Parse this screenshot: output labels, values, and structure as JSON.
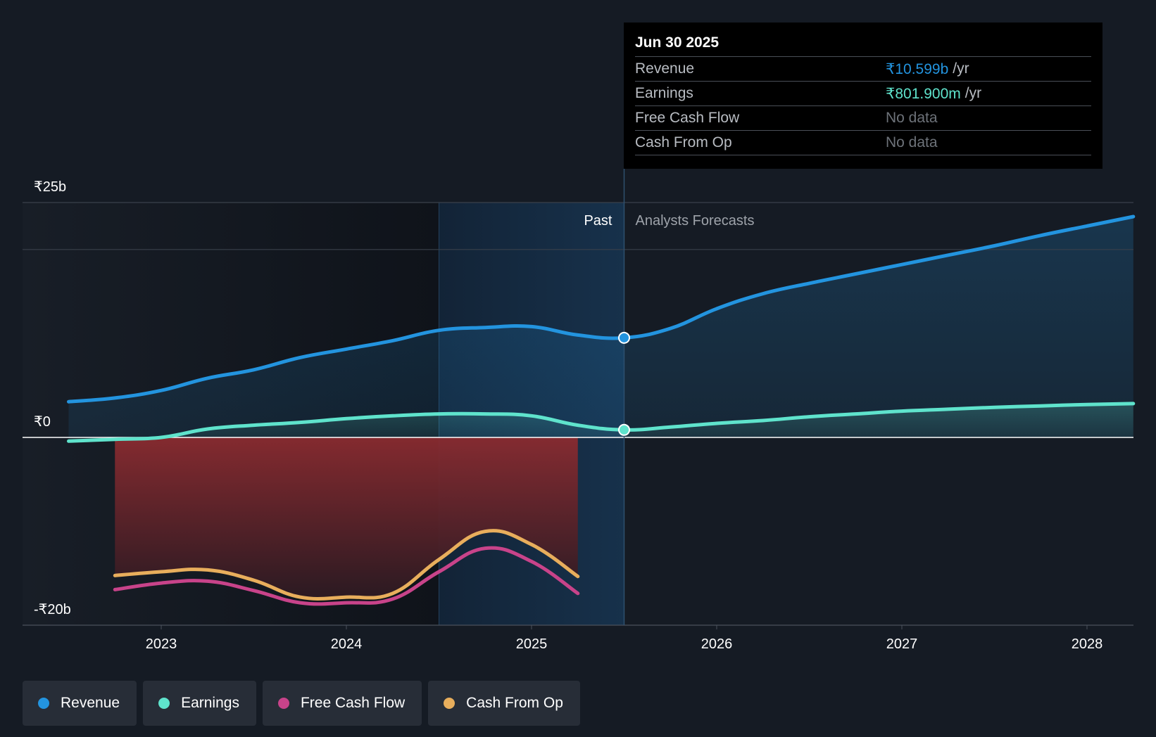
{
  "tooltip": {
    "date": "Jun 30 2025",
    "rows": [
      {
        "name": "Revenue",
        "value": "₹10.599b",
        "unit": "/yr",
        "color": "#2394df"
      },
      {
        "name": "Earnings",
        "value": "₹801.900m",
        "unit": "/yr",
        "color": "#5fe3cc"
      },
      {
        "name": "Free Cash Flow",
        "value": "No data"
      },
      {
        "name": "Cash From Op",
        "value": "No data"
      }
    ]
  },
  "regions": {
    "past": "Past",
    "forecast": "Analysts Forecasts"
  },
  "legend": [
    {
      "label": "Revenue",
      "color": "#2394df"
    },
    {
      "label": "Earnings",
      "color": "#5fe3cc"
    },
    {
      "label": "Free Cash Flow",
      "color": "#c8438a"
    },
    {
      "label": "Cash From Op",
      "color": "#e8ae5c"
    }
  ],
  "chart_data": {
    "type": "line",
    "title": "",
    "xlabel": "",
    "ylabel": "",
    "currency": "INR",
    "x_unit": "year",
    "xlim": [
      2022.25,
      2028.25
    ],
    "ylim": [
      -20,
      25
    ],
    "y_ticks": [
      {
        "value": 25,
        "label": "₹25b"
      },
      {
        "value": 0,
        "label": "₹0"
      },
      {
        "value": -20,
        "label": "-₹20b"
      }
    ],
    "x_ticks": [
      {
        "value": 2023,
        "label": "2023"
      },
      {
        "value": 2024,
        "label": "2024"
      },
      {
        "value": 2025,
        "label": "2025"
      },
      {
        "value": 2026,
        "label": "2026"
      },
      {
        "value": 2027,
        "label": "2027"
      },
      {
        "value": 2028,
        "label": "2028"
      }
    ],
    "gridlines": [
      25,
      20
    ],
    "past_band": [
      2024.5,
      2025.5
    ],
    "divider_x": 2025.5,
    "highlight_x": 2025.5,
    "series": [
      {
        "name": "Revenue",
        "color": "#2394df",
        "points": [
          [
            2022.5,
            3.8
          ],
          [
            2022.75,
            4.2
          ],
          [
            2023.0,
            5.0
          ],
          [
            2023.25,
            6.3
          ],
          [
            2023.5,
            7.2
          ],
          [
            2023.75,
            8.5
          ],
          [
            2024.0,
            9.4
          ],
          [
            2024.25,
            10.3
          ],
          [
            2024.5,
            11.4
          ],
          [
            2024.75,
            11.7
          ],
          [
            2025.0,
            11.8
          ],
          [
            2025.25,
            10.9
          ],
          [
            2025.5,
            10.6
          ],
          [
            2025.75,
            11.6
          ],
          [
            2026.0,
            13.7
          ],
          [
            2026.25,
            15.3
          ],
          [
            2026.5,
            16.4
          ],
          [
            2026.75,
            17.4
          ],
          [
            2027.0,
            18.4
          ],
          [
            2027.25,
            19.4
          ],
          [
            2027.5,
            20.4
          ],
          [
            2027.75,
            21.5
          ],
          [
            2028.0,
            22.5
          ],
          [
            2028.25,
            23.5
          ]
        ]
      },
      {
        "name": "Earnings",
        "color": "#5fe3cc",
        "points": [
          [
            2022.5,
            -0.4
          ],
          [
            2022.75,
            -0.2
          ],
          [
            2023.0,
            0.0
          ],
          [
            2023.25,
            0.9
          ],
          [
            2023.5,
            1.3
          ],
          [
            2023.75,
            1.6
          ],
          [
            2024.0,
            2.0
          ],
          [
            2024.25,
            2.3
          ],
          [
            2024.5,
            2.5
          ],
          [
            2024.75,
            2.5
          ],
          [
            2025.0,
            2.3
          ],
          [
            2025.25,
            1.3
          ],
          [
            2025.5,
            0.8
          ],
          [
            2025.75,
            1.1
          ],
          [
            2026.0,
            1.5
          ],
          [
            2026.25,
            1.8
          ],
          [
            2026.5,
            2.2
          ],
          [
            2026.75,
            2.5
          ],
          [
            2027.0,
            2.8
          ],
          [
            2027.25,
            3.0
          ],
          [
            2027.5,
            3.2
          ],
          [
            2027.75,
            3.35
          ],
          [
            2028.0,
            3.5
          ],
          [
            2028.25,
            3.6
          ]
        ]
      },
      {
        "name": "Free Cash Flow",
        "color": "#c8438a",
        "points": [
          [
            2022.75,
            -16.2
          ],
          [
            2023.0,
            -15.5
          ],
          [
            2023.25,
            -15.3
          ],
          [
            2023.5,
            -16.3
          ],
          [
            2023.75,
            -17.6
          ],
          [
            2024.0,
            -17.6
          ],
          [
            2024.25,
            -17.2
          ],
          [
            2024.5,
            -14.3
          ],
          [
            2024.75,
            -11.8
          ],
          [
            2025.0,
            -13.2
          ],
          [
            2025.25,
            -16.6
          ]
        ]
      },
      {
        "name": "Cash From Op",
        "color": "#e8ae5c",
        "points": [
          [
            2022.75,
            -14.7
          ],
          [
            2023.0,
            -14.3
          ],
          [
            2023.25,
            -14.1
          ],
          [
            2023.5,
            -15.2
          ],
          [
            2023.75,
            -17.0
          ],
          [
            2024.0,
            -17.0
          ],
          [
            2024.25,
            -16.6
          ],
          [
            2024.5,
            -13.0
          ],
          [
            2024.75,
            -10.0
          ],
          [
            2025.0,
            -11.4
          ],
          [
            2025.25,
            -14.8
          ]
        ]
      }
    ]
  }
}
